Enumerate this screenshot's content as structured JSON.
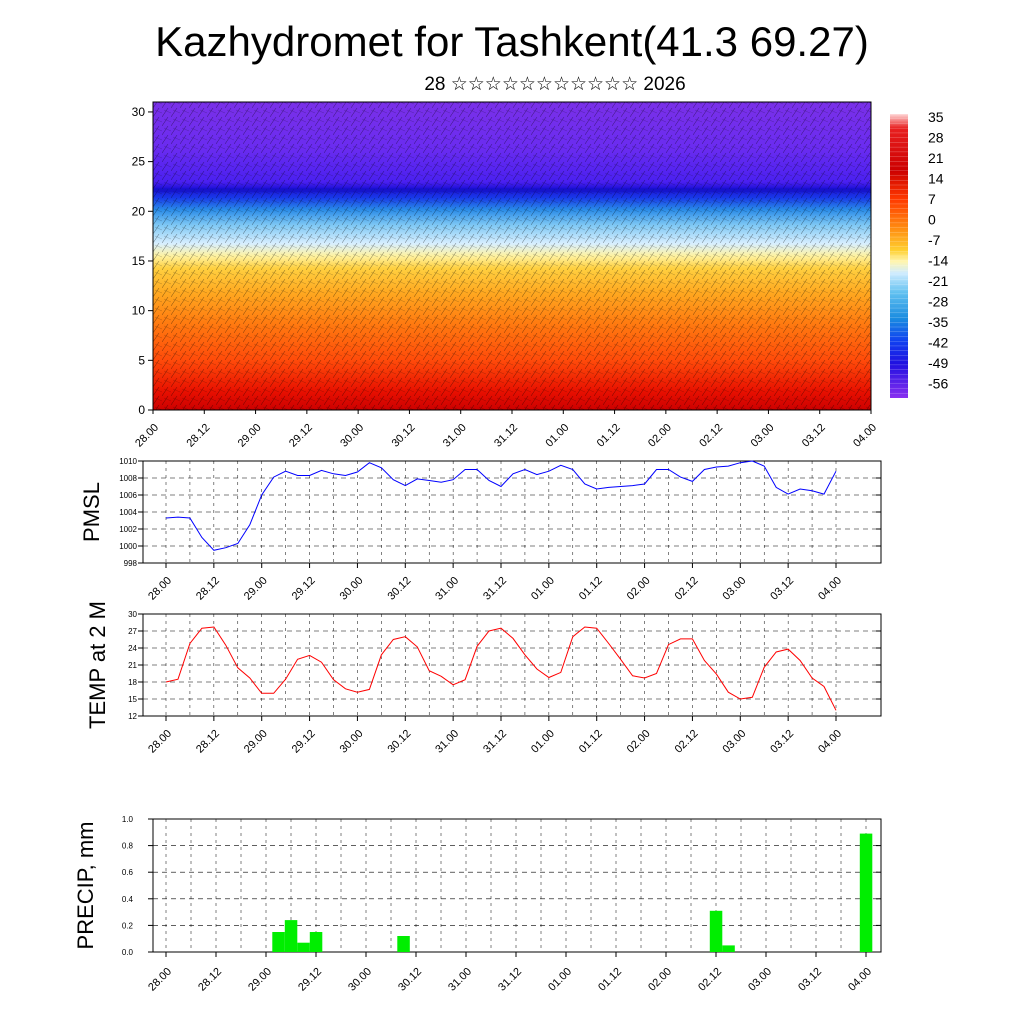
{
  "title": "Kazhydromet for Tashkent(41.3 69.27)",
  "subtitle": "28 ☆☆☆☆☆☆☆☆☆☆☆ 2026",
  "time_ticks": [
    "28.00",
    "28.12",
    "29.00",
    "29.12",
    "30.00",
    "30.12",
    "31.00",
    "31.12",
    "01.00",
    "01.12",
    "02.00",
    "02.12",
    "03.00",
    "03.12",
    "04.00"
  ],
  "chart_data": [
    {
      "type": "heatmap",
      "name": "cross-section",
      "ylim": [
        0,
        31
      ],
      "yticks": [
        0,
        5,
        10,
        15,
        20,
        25,
        30
      ],
      "colorbar": {
        "labels": [
          "35",
          "28",
          "21",
          "14",
          "7",
          "0",
          "-7",
          "-14",
          "-21",
          "-28",
          "-35",
          "-42",
          "-49",
          "-56"
        ],
        "values": [
          35,
          28,
          21,
          14,
          7,
          0,
          -7,
          -14,
          -21,
          -28,
          -35,
          -42,
          -49,
          -56
        ]
      },
      "overlay": "wind barbs"
    },
    {
      "type": "line",
      "name": "PMSL",
      "ylabel": "PMSL",
      "ylim": [
        998,
        1010
      ],
      "yticks": [
        998,
        1000,
        1002,
        1004,
        1006,
        1008,
        1010
      ],
      "color": "#0000ff",
      "x": [
        0,
        0.5,
        1,
        1.5,
        2,
        2.5,
        3,
        3.5,
        4,
        4.5,
        5,
        5.5,
        6,
        6.5,
        7,
        7.5,
        8,
        8.5,
        9,
        9.5,
        10,
        10.5,
        11,
        11.5,
        12,
        12.5,
        13,
        13.5,
        14,
        14.5,
        15,
        15.5,
        16,
        16.5,
        17,
        17.5,
        18,
        18.5,
        19,
        19.5,
        20,
        20.5,
        21,
        21.5,
        22,
        22.5,
        23,
        23.5,
        24,
        24.5,
        25,
        25.5,
        26,
        26.5,
        27,
        27.5,
        28
      ],
      "values": [
        1003.3,
        1003.4,
        1003.3,
        1001,
        999.5,
        999.8,
        1000.3,
        1002.5,
        1006,
        1008.1,
        1008.8,
        1008.3,
        1008.3,
        1008.9,
        1008.5,
        1008.3,
        1008.7,
        1009.8,
        1009.2,
        1007.8,
        1007.1,
        1007.9,
        1007.7,
        1007.5,
        1007.8,
        1009,
        1009,
        1007.7,
        1007,
        1008.5,
        1009,
        1008.4,
        1008.8,
        1009.5,
        1009,
        1007.3,
        1006.7,
        1006.9,
        1007,
        1007.1,
        1007.3,
        1009,
        1009,
        1008.1,
        1007.6,
        1009,
        1009.3,
        1009.4,
        1009.8,
        1010,
        1009.4,
        1006.9,
        1006.1,
        1006.7,
        1006.5,
        1006.1,
        1008.8
      ]
    },
    {
      "type": "line",
      "name": "TEMP at 2 M",
      "ylabel": "TEMP at 2 M",
      "ylim": [
        12,
        30
      ],
      "yticks": [
        12,
        15,
        18,
        21,
        24,
        27,
        30
      ],
      "color": "#ff0000",
      "x": [
        0,
        0.5,
        1,
        1.5,
        2,
        2.5,
        3,
        3.5,
        4,
        4.5,
        5,
        5.5,
        6,
        6.5,
        7,
        7.5,
        8,
        8.5,
        9,
        9.5,
        10,
        10.5,
        11,
        11.5,
        12,
        12.5,
        13,
        13.5,
        14,
        14.5,
        15,
        15.5,
        16,
        16.5,
        17,
        17.5,
        18,
        18.5,
        19,
        19.5,
        20,
        20.5,
        21,
        21.5,
        22,
        22.5,
        23,
        23.5,
        24,
        24.5,
        25,
        25.5,
        26,
        26.5,
        27,
        27.5,
        28
      ],
      "values": [
        18,
        18.5,
        24.8,
        27.5,
        27.7,
        24.5,
        20.5,
        18.7,
        16,
        16,
        18.5,
        22,
        22.7,
        21.5,
        18.4,
        16.8,
        16.2,
        16.7,
        22.8,
        25.5,
        26,
        24.2,
        20,
        19,
        17.5,
        18.4,
        24.3,
        27,
        27.5,
        25.7,
        22.8,
        20.3,
        18.8,
        19.7,
        26,
        27.7,
        27.5,
        24.8,
        22,
        19.1,
        18.7,
        19.5,
        24.6,
        25.6,
        25.6,
        21.8,
        19.4,
        16.2,
        15,
        15.3,
        20.6,
        23.3,
        23.8,
        21.8,
        18.7,
        17.2,
        13
      ]
    },
    {
      "type": "bar",
      "name": "PRECIP, mm",
      "ylabel": "PRECIP, mm",
      "ylim": [
        0,
        1.0
      ],
      "yticks": [
        "0.0",
        "0.2",
        "0.4",
        "0.6",
        "0.8",
        "1.0"
      ],
      "color": "#00ee00",
      "bars": [
        {
          "x": 4.5,
          "value": 0.15
        },
        {
          "x": 5.0,
          "value": 0.24
        },
        {
          "x": 5.5,
          "value": 0.07
        },
        {
          "x": 6.0,
          "value": 0.15
        },
        {
          "x": 9.5,
          "value": 0.12
        },
        {
          "x": 22.0,
          "value": 0.31
        },
        {
          "x": 22.5,
          "value": 0.05
        },
        {
          "x": 28.0,
          "value": 0.89
        }
      ]
    }
  ]
}
